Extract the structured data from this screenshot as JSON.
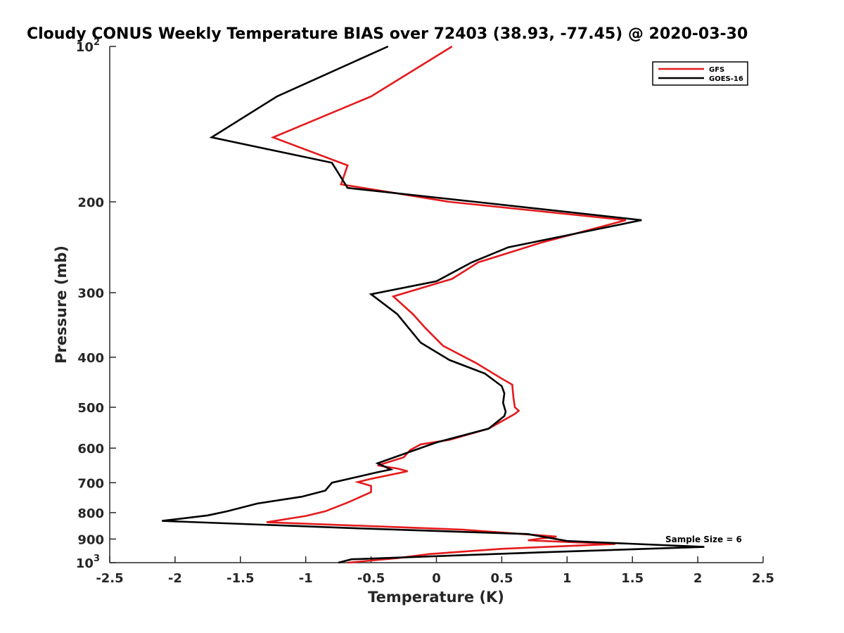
{
  "chart_data": {
    "type": "line",
    "title": "Cloudy CONUS Weekly Temperature BIAS over 72403 (38.93, -77.45) @ 2020-03-30",
    "xlabel": "Temperature (K)",
    "ylabel": "Pressure (mb)",
    "xlim": [
      -2.5,
      2.5
    ],
    "ylim": [
      100,
      1000
    ],
    "y_scale": "log",
    "y_reversed": true,
    "grid": false,
    "legend_position": "top-right",
    "x_ticks": [
      "-2.5",
      "-2",
      "-1.5",
      "-1",
      "-0.5",
      "0",
      "0.5",
      "1",
      "1.5",
      "2",
      "2.5"
    ],
    "y_ticks": [
      {
        "value": 100,
        "label": "10",
        "sup": "2"
      },
      {
        "value": 200,
        "label": "200"
      },
      {
        "value": 300,
        "label": "300"
      },
      {
        "value": 400,
        "label": "400"
      },
      {
        "value": 500,
        "label": "500"
      },
      {
        "value": 600,
        "label": "600"
      },
      {
        "value": 700,
        "label": "700"
      },
      {
        "value": 800,
        "label": "800"
      },
      {
        "value": 900,
        "label": "900"
      },
      {
        "value": 1000,
        "label": "10",
        "sup": "3"
      }
    ],
    "annotation": "Sample Size = 6",
    "series": [
      {
        "name": "GFS",
        "color": "#e41a1c",
        "points": [
          [
            0.12,
            100
          ],
          [
            -0.5,
            125
          ],
          [
            -1.25,
            150
          ],
          [
            -0.68,
            170
          ],
          [
            -0.73,
            185
          ],
          [
            0.1,
            200
          ],
          [
            1.45,
            217
          ],
          [
            0.8,
            240
          ],
          [
            0.32,
            262
          ],
          [
            0.12,
            282
          ],
          [
            -0.33,
            305
          ],
          [
            -0.18,
            330
          ],
          [
            -0.08,
            352
          ],
          [
            0.05,
            380
          ],
          [
            0.3,
            410
          ],
          [
            0.5,
            440
          ],
          [
            0.58,
            452
          ],
          [
            0.59,
            480
          ],
          [
            0.6,
            500
          ],
          [
            0.63,
            508
          ],
          [
            0.6,
            515
          ],
          [
            0.4,
            550
          ],
          [
            0.1,
            578
          ],
          [
            -0.12,
            590
          ],
          [
            -0.2,
            605
          ],
          [
            -0.25,
            625
          ],
          [
            -0.45,
            648
          ],
          [
            -0.3,
            657
          ],
          [
            -0.22,
            665
          ],
          [
            -0.5,
            688
          ],
          [
            -0.6,
            698
          ],
          [
            -0.5,
            710
          ],
          [
            -0.5,
            730
          ],
          [
            -0.68,
            765
          ],
          [
            -0.85,
            795
          ],
          [
            -1.0,
            812
          ],
          [
            -1.3,
            835
          ],
          [
            0.2,
            863
          ],
          [
            0.92,
            890
          ],
          [
            0.7,
            905
          ],
          [
            1.37,
            920
          ],
          [
            0.5,
            940
          ],
          [
            -0.05,
            962
          ],
          [
            -0.3,
            980
          ],
          [
            -0.68,
            1000
          ]
        ]
      },
      {
        "name": "GOES-16",
        "color": "#000000",
        "points": [
          [
            -0.37,
            100
          ],
          [
            -1.22,
            125
          ],
          [
            -1.72,
            150
          ],
          [
            -0.8,
            168
          ],
          [
            -0.68,
            188
          ],
          [
            0.3,
            200
          ],
          [
            1.57,
            217
          ],
          [
            0.55,
            245
          ],
          [
            0.27,
            262
          ],
          [
            0.0,
            285
          ],
          [
            -0.5,
            302
          ],
          [
            -0.3,
            330
          ],
          [
            -0.12,
            375
          ],
          [
            0.1,
            405
          ],
          [
            0.37,
            430
          ],
          [
            0.5,
            455
          ],
          [
            0.52,
            470
          ],
          [
            0.51,
            490
          ],
          [
            0.52,
            500
          ],
          [
            0.53,
            510
          ],
          [
            0.52,
            520
          ],
          [
            0.4,
            550
          ],
          [
            0.0,
            585
          ],
          [
            -0.22,
            612
          ],
          [
            -0.45,
            642
          ],
          [
            -0.35,
            660
          ],
          [
            -0.45,
            668
          ],
          [
            -0.8,
            700
          ],
          [
            -0.85,
            725
          ],
          [
            -1.03,
            745
          ],
          [
            -1.37,
            768
          ],
          [
            -1.6,
            795
          ],
          [
            -1.75,
            810
          ],
          [
            -2.1,
            830
          ],
          [
            -0.6,
            858
          ],
          [
            0.7,
            880
          ],
          [
            1.0,
            908
          ],
          [
            2.05,
            932
          ],
          [
            0.8,
            955
          ],
          [
            -0.65,
            985
          ],
          [
            -0.75,
            1000
          ]
        ]
      }
    ]
  }
}
